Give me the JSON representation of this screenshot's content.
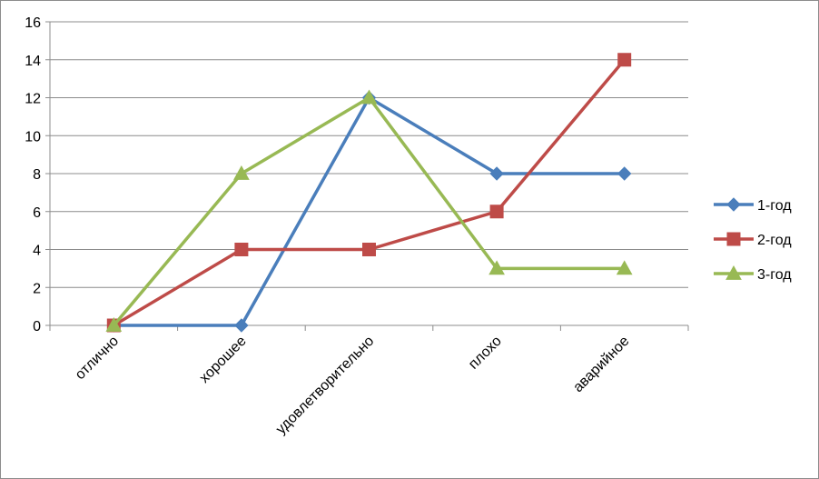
{
  "chart_data": {
    "type": "line",
    "title": "",
    "xlabel": "",
    "ylabel": "",
    "categories": [
      "отлично",
      "хорошее",
      "удовлетворительно",
      "плохо",
      "аварийное"
    ],
    "ylim": [
      0,
      16
    ],
    "yticks": [
      0,
      2,
      4,
      6,
      8,
      10,
      12,
      14,
      16
    ],
    "grid": true,
    "legend_position": "right",
    "series": [
      {
        "name": "1-год",
        "color": "#4a7ebb",
        "marker": "diamond",
        "values": [
          0,
          0,
          12,
          8,
          8
        ]
      },
      {
        "name": "2-год",
        "color": "#be4b48",
        "marker": "square",
        "values": [
          0,
          4,
          4,
          6,
          14
        ]
      },
      {
        "name": "3-год",
        "color": "#98b954",
        "marker": "triangle",
        "values": [
          0,
          8,
          12,
          3,
          3
        ]
      }
    ]
  }
}
